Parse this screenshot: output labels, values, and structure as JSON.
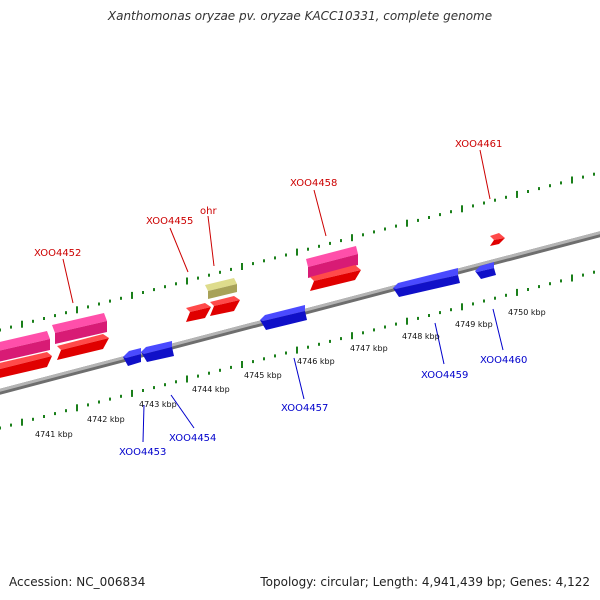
{
  "header": {
    "title": "Xanthomonas oryzae pv. oryzae KACC10331, complete genome"
  },
  "footer": {
    "accession": "Accession: NC_006834",
    "summary": "Topology: circular; Length: 4,941,439 bp; Genes: 4,122"
  },
  "colors": {
    "forward_gene": "#ff0000",
    "forward_gene_pink": "#ee2a8a",
    "reverse_gene": "#1010ee",
    "rna_gene": "#bdb76b",
    "forward_label": "#cc0000",
    "reverse_label": "#0000cc",
    "backbone": "#888888",
    "ticks": "#1a7f1a"
  },
  "scale": {
    "unit": "kbp",
    "tick_labels": [
      "4741 kbp",
      "4742 kbp",
      "4743 kbp",
      "4744 kbp",
      "4745 kbp",
      "4746 kbp",
      "4747 kbp",
      "4748 kbp",
      "4749 kbp",
      "4750 kbp"
    ]
  },
  "genes": [
    {
      "label": "XOO4452",
      "strand": "forward"
    },
    {
      "label": "XOO4453",
      "strand": "reverse"
    },
    {
      "label": "XOO4454",
      "strand": "reverse"
    },
    {
      "label": "XOO4455",
      "strand": "forward"
    },
    {
      "label": "ohr",
      "strand": "forward"
    },
    {
      "label": "XOO4457",
      "strand": "reverse"
    },
    {
      "label": "XOO4458",
      "strand": "forward"
    },
    {
      "label": "XOO4459",
      "strand": "reverse"
    },
    {
      "label": "XOO4460",
      "strand": "reverse"
    },
    {
      "label": "XOO4461",
      "strand": "forward"
    }
  ]
}
